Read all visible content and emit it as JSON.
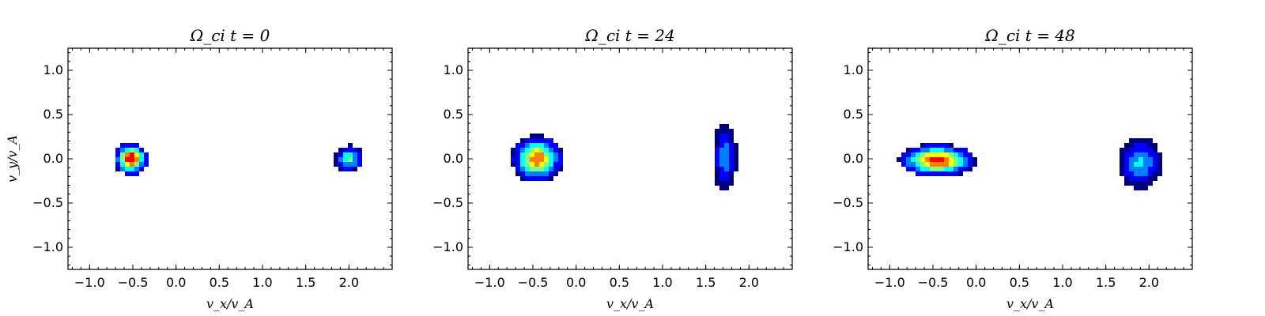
{
  "chart_data": [
    {
      "type": "heatmap",
      "title": "Ω_ci t = 0",
      "xlabel": "v_x/v_A",
      "ylabel": "v_y/v_A",
      "xlim": [
        -1.25,
        2.5
      ],
      "ylim": [
        -1.25,
        1.25
      ],
      "xticks": [
        "−1.0",
        "−0.5",
        "0.0",
        "0.5",
        "1.0",
        "1.5",
        "2.0"
      ],
      "yticks": [
        "1.0",
        "0.5",
        "0.0",
        "−0.5",
        "−1.0"
      ],
      "populations": [
        {
          "center_x": -0.52,
          "center_y": 0.0,
          "spread_x": 0.4,
          "spread_y": 0.38,
          "peak_level": 1.0
        },
        {
          "center_x": 2.0,
          "center_y": 0.0,
          "spread_x": 0.36,
          "spread_y": 0.31,
          "peak_level": 0.52
        }
      ]
    },
    {
      "type": "heatmap",
      "title": "Ω_ci t = 24",
      "xlabel": "v_x/v_A",
      "ylabel": "",
      "xlim": [
        -1.25,
        2.5
      ],
      "ylim": [
        -1.25,
        1.25
      ],
      "xticks": [
        "−1.0",
        "−0.5",
        "0.0",
        "0.5",
        "1.0",
        "1.5",
        "2.0"
      ],
      "yticks": [
        "1.0",
        "0.5",
        "0.0",
        "−0.5",
        "−1.0"
      ],
      "populations": [
        {
          "center_x": -0.45,
          "center_y": 0.0,
          "spread_x": 0.6,
          "spread_y": 0.55,
          "peak_level": 0.85
        },
        {
          "center_x": 1.72,
          "center_y": 0.02,
          "spread_x": 0.28,
          "spread_y": 0.8,
          "peak_level": 0.36
        }
      ]
    },
    {
      "type": "heatmap",
      "title": "Ω_ci t = 48",
      "xlabel": "v_x/v_A",
      "ylabel": "",
      "xlim": [
        -1.25,
        2.5
      ],
      "ylim": [
        -1.25,
        1.25
      ],
      "xticks": [
        "−1.0",
        "−0.5",
        "0.0",
        "0.5",
        "1.0",
        "1.5",
        "2.0"
      ],
      "yticks": [
        "1.0",
        "0.5",
        "0.0",
        "−0.5",
        "−1.0"
      ],
      "populations": [
        {
          "center_x": -0.45,
          "center_y": -0.02,
          "spread_x": 0.9,
          "spread_y": 0.38,
          "peak_level": 0.95
        },
        {
          "center_x": 1.9,
          "center_y": -0.05,
          "spread_x": 0.52,
          "spread_y": 0.58,
          "peak_level": 0.42
        }
      ]
    }
  ],
  "colormap": [
    "#00007f",
    "#0000ff",
    "#007fff",
    "#00ffff",
    "#7fff7f",
    "#ffff00",
    "#ff7f00",
    "#ff0000"
  ]
}
